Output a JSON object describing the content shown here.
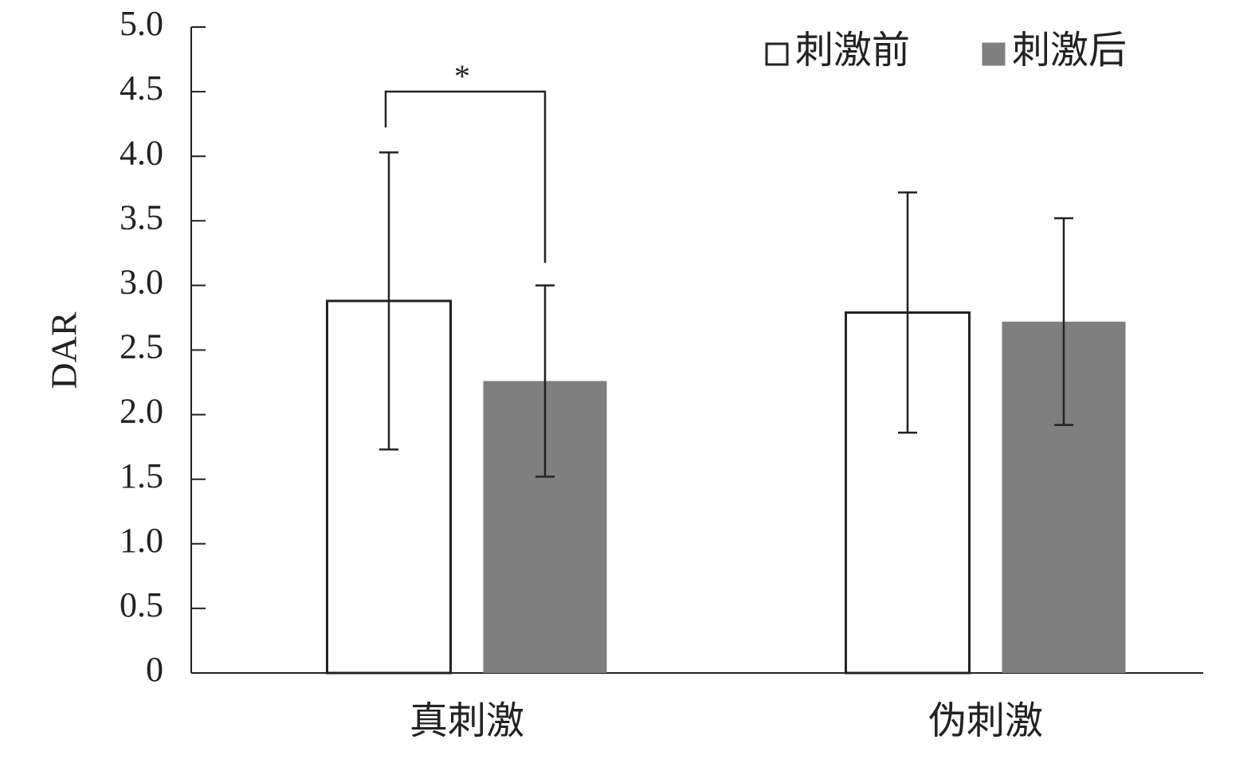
{
  "chart_data": {
    "type": "bar",
    "y_label": "DAR",
    "categories": [
      "真刺激",
      "伪刺激"
    ],
    "series": [
      {
        "name": "刺激前",
        "color": "#ffffff",
        "values": [
          2.88,
          2.79
        ],
        "errors": [
          1.15,
          0.93
        ]
      },
      {
        "name": "刺激后",
        "color": "#7f7f7f",
        "values": [
          2.26,
          2.72
        ],
        "errors": [
          0.74,
          0.8
        ]
      }
    ],
    "ylim": [
      0,
      5
    ],
    "yticks": [
      0,
      0.5,
      {
        "value": 1,
        "label": "1.0"
      },
      1.5,
      {
        "value": 2,
        "label": "2.0"
      },
      2.5,
      {
        "value": 3,
        "label": "3.0"
      },
      3.5,
      {
        "value": 4,
        "label": "4.0"
      },
      4.5,
      {
        "value": 5,
        "label": "5.0"
      }
    ],
    "annotations": [
      {
        "text": "*"
      }
    ],
    "legend": "top-right"
  }
}
